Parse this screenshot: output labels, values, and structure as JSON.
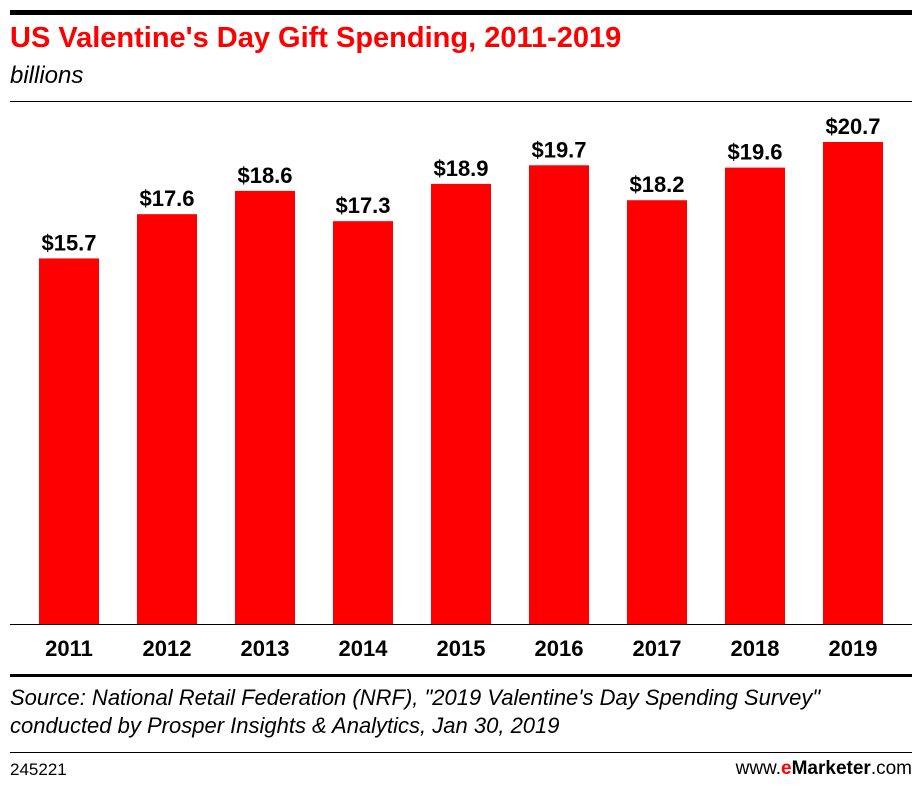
{
  "header": {
    "title": "US Valentine's Day Gift Spending, 2011-2019",
    "subtitle": "billions"
  },
  "chart_data": {
    "type": "bar",
    "title": "US Valentine's Day Gift Spending, 2011-2019",
    "subtitle": "billions",
    "categories": [
      "2011",
      "2012",
      "2013",
      "2014",
      "2015",
      "2016",
      "2017",
      "2018",
      "2019"
    ],
    "values": [
      15.7,
      17.6,
      18.6,
      17.3,
      18.9,
      19.7,
      18.2,
      19.6,
      20.7
    ],
    "data_labels": [
      "$15.7",
      "$17.6",
      "$18.6",
      "$17.3",
      "$18.9",
      "$19.7",
      "$18.2",
      "$19.6",
      "$20.7"
    ],
    "xlabel": "",
    "ylabel": "",
    "ylim": [
      0,
      20.7
    ],
    "grid": false,
    "legend": "none",
    "bar_color": "#ff0000"
  },
  "footer": {
    "source": "Source: National Retail Federation (NRF), \"2019 Valentine's Day Spending Survey\" conducted by Prosper Insights & Analytics, Jan 30, 2019",
    "chart_id": "245221",
    "brand_prefix": "www.",
    "brand_e": "e",
    "brand_marketer": "Marketer",
    "brand_suffix": ".com"
  },
  "colors": {
    "accent": "#ff0000",
    "text": "#000000"
  }
}
